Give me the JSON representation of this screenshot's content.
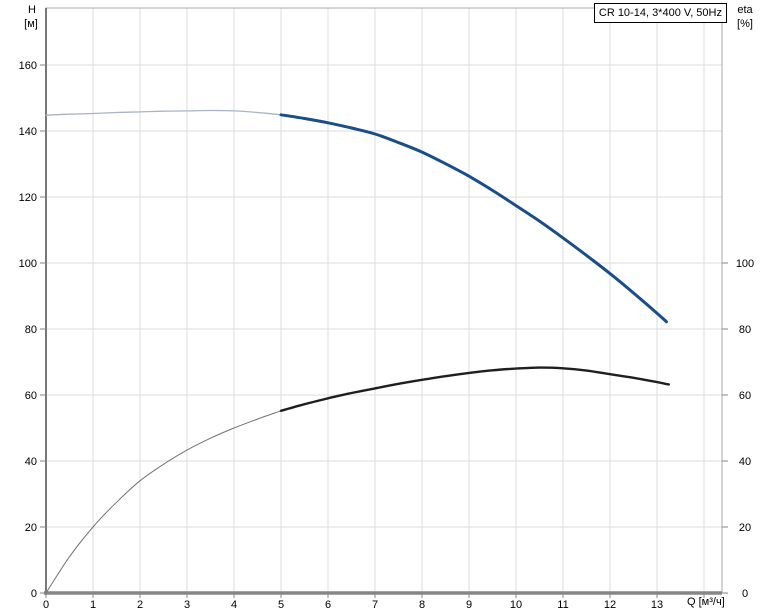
{
  "title_box": {
    "label": "CR 10-14, 3*400 V, 50Hz"
  },
  "axis_labels": {
    "left_quantity": "H",
    "left_unit": "[м]",
    "right_quantity": "eta",
    "right_unit": "[%]",
    "x_label": "Q [м³/ч]"
  },
  "colors": {
    "h_curve_thick": "#1a4e8a",
    "h_curve_thin": "#a9b3c6",
    "eta_curve_thick": "#1f1f1f",
    "eta_curve_thin": "#747474",
    "grid": "#dcdcdc",
    "plot_border": "#a8a8a8",
    "axis_strong": "#868686",
    "text": "#000000",
    "background": "#ffffff"
  },
  "chart_data": {
    "type": "line",
    "title": "CR 10-14, 3*400 V, 50Hz",
    "grid": true,
    "duty_range_start_q": 5.0,
    "x_axis": {
      "label": "Q [м³/ч]",
      "ticks": [
        0,
        1,
        2,
        3,
        4,
        5,
        6,
        7,
        8,
        9,
        10,
        11,
        12,
        13
      ],
      "range": [
        0,
        14.38
      ]
    },
    "y_axis_left": {
      "label": "H [м]",
      "ticks": [
        0,
        20,
        40,
        60,
        80,
        100,
        120,
        140,
        160
      ],
      "range": [
        0,
        177
      ]
    },
    "y_axis_right": {
      "label": "eta [%]",
      "ticks": [
        0,
        20,
        40,
        60,
        80,
        100
      ],
      "range": [
        0,
        177
      ]
    },
    "series": [
      {
        "name": "H",
        "axis": "left",
        "color_thin": "#a9b3c6",
        "color_thick": "#1a4e8a",
        "x": [
          0,
          0.5,
          1,
          1.5,
          2,
          2.5,
          3,
          3.5,
          4,
          4.5,
          5,
          5.5,
          6,
          6.5,
          7,
          7.5,
          8,
          8.5,
          9,
          9.5,
          10,
          10.5,
          11,
          11.5,
          12,
          12.5,
          13,
          13.2
        ],
        "values": [
          144.8,
          145.1,
          145.3,
          145.6,
          145.8,
          146.0,
          146.1,
          146.2,
          146.1,
          145.6,
          144.9,
          143.8,
          142.5,
          140.9,
          139.1,
          136.5,
          133.6,
          130.1,
          126.3,
          122.0,
          117.4,
          112.7,
          107.6,
          102.3,
          96.8,
          90.9,
          84.8,
          82.2
        ]
      },
      {
        "name": "eta",
        "axis": "right",
        "color_thin": "#747474",
        "color_thick": "#1f1f1f",
        "x": [
          0,
          0.5,
          1,
          1.5,
          2,
          2.5,
          3,
          3.5,
          4,
          4.5,
          5,
          5.5,
          6,
          6.5,
          7,
          7.5,
          8,
          8.5,
          9,
          9.5,
          10,
          10.5,
          11,
          11.5,
          12,
          12.5,
          13,
          13.25
        ],
        "values": [
          0,
          11,
          20,
          27.5,
          34,
          39,
          43.3,
          46.9,
          50,
          52.7,
          55.2,
          57.2,
          59,
          60.6,
          62,
          63.4,
          64.6,
          65.7,
          66.7,
          67.5,
          68,
          68.3,
          68.1,
          67.4,
          66.3,
          65.2,
          63.9,
          63.2
        ]
      }
    ]
  }
}
